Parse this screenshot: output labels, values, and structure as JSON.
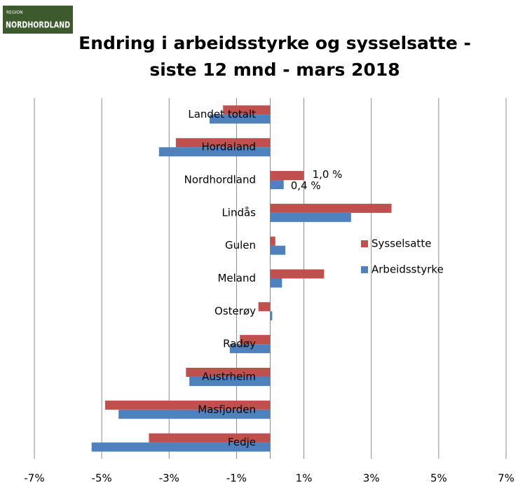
{
  "logo": {
    "small": "REGION",
    "large": "NORDHORDLAND"
  },
  "chart_data": {
    "type": "hbar",
    "title": [
      "Endring i arbeidsstyrke og sysselsatte -",
      "siste 12 mnd - mars 2018"
    ],
    "categories": [
      "Landet totalt",
      "Hordaland",
      "Nordhordland",
      "Lindås",
      "Gulen",
      "Meland",
      "Osterøy",
      "Radøy",
      "Austrheim",
      "Masfjorden",
      "Fedje"
    ],
    "series": [
      {
        "name": "Sysselsatte",
        "color": "#c0504d",
        "values": [
          -1.4,
          -2.8,
          1.0,
          3.6,
          0.15,
          1.6,
          -0.35,
          -0.9,
          -2.5,
          -4.9,
          -3.6
        ],
        "value_labels": [
          null,
          null,
          "1,0 %",
          null,
          null,
          null,
          null,
          null,
          null,
          null,
          null
        ]
      },
      {
        "name": "Arbeidsstyrke",
        "color": "#4f81bd",
        "values": [
          -1.8,
          -3.3,
          0.4,
          2.4,
          0.45,
          0.35,
          0.06,
          -1.2,
          -2.4,
          -4.5,
          -5.3
        ],
        "value_labels": [
          null,
          null,
          "0,4 %",
          null,
          null,
          null,
          null,
          null,
          null,
          null,
          null
        ]
      }
    ],
    "xlim": [
      -7,
      7
    ],
    "xticks": [
      {
        "value": -7,
        "label": "-7%"
      },
      {
        "value": -5,
        "label": "-5%"
      },
      {
        "value": -3,
        "label": "-3%"
      },
      {
        "value": -1,
        "label": "-1%"
      },
      {
        "value": 1,
        "label": "1%"
      },
      {
        "value": 3,
        "label": "3%"
      },
      {
        "value": 5,
        "label": "5%"
      },
      {
        "value": 7,
        "label": "7%"
      }
    ],
    "grid": true
  }
}
